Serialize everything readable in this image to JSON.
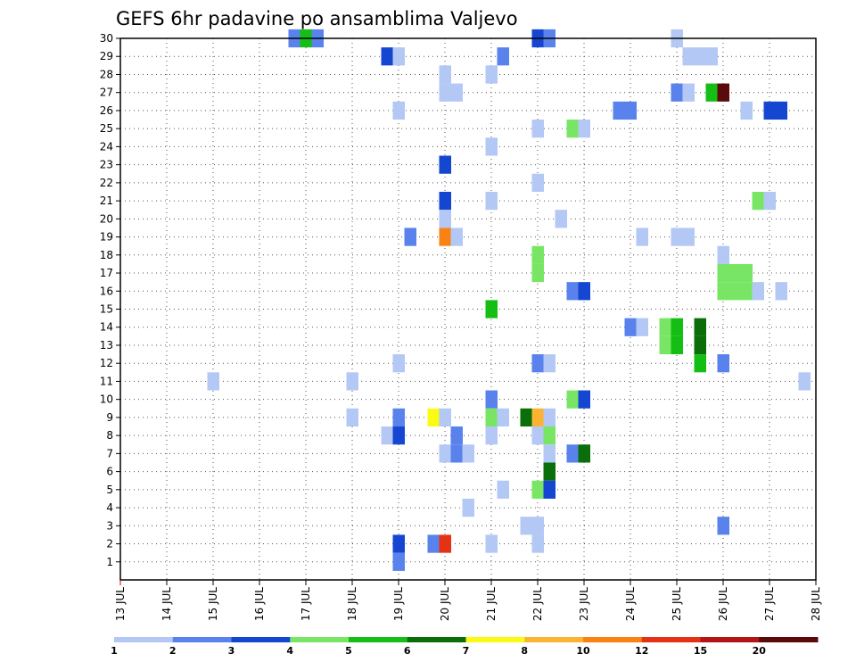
{
  "chart_data": {
    "type": "heatmap",
    "title": "GEFS 6hr padavine po ansamblima Valjevo",
    "x_tick_labels": [
      "13 JUL",
      "14 JUL",
      "15 JUL",
      "16 JUL",
      "17 JUL",
      "18 JUL",
      "19 JUL",
      "20 JUL",
      "21 JUL",
      "22 JUL",
      "23 JUL",
      "24 JUL",
      "25 JUL",
      "26 JUL",
      "27 JUL",
      "28 JUL"
    ],
    "x_range_days": [
      13,
      28
    ],
    "y_tick_labels": [
      "1",
      "2",
      "3",
      "4",
      "5",
      "6",
      "7",
      "8",
      "9",
      "10",
      "11",
      "12",
      "13",
      "14",
      "15",
      "16",
      "17",
      "18",
      "19",
      "20",
      "21",
      "22",
      "23",
      "24",
      "25",
      "26",
      "27",
      "28",
      "29",
      "30"
    ],
    "y_range": [
      0,
      30
    ],
    "grid": true,
    "legend": {
      "placement": "bottom",
      "labels": [
        "1",
        "2",
        "3",
        "4",
        "5",
        "6",
        "7",
        "8",
        "10",
        "12",
        "15",
        "20"
      ],
      "colors": [
        "#b4c8f5",
        "#5a82ec",
        "#1446d2",
        "#78e664",
        "#14be14",
        "#0a6e0a",
        "#fafa14",
        "#fab432",
        "#fa8214",
        "#e63214",
        "#b41414",
        "#5a0a0a"
      ]
    },
    "cells": [
      {
        "member": 30,
        "day": 16.75,
        "value": 2
      },
      {
        "member": 30,
        "day": 17.0,
        "value": 5
      },
      {
        "member": 30,
        "day": 17.25,
        "value": 2
      },
      {
        "member": 30,
        "day": 22.0,
        "value": 3
      },
      {
        "member": 30,
        "day": 22.25,
        "value": 2
      },
      {
        "member": 30,
        "day": 25.0,
        "value": 1
      },
      {
        "member": 29,
        "day": 18.75,
        "value": 3
      },
      {
        "member": 29,
        "day": 19.0,
        "value": 1
      },
      {
        "member": 29,
        "day": 21.25,
        "value": 2
      },
      {
        "member": 29,
        "day": 25.25,
        "value": 1
      },
      {
        "member": 29,
        "day": 25.5,
        "value": 1
      },
      {
        "member": 29,
        "day": 25.75,
        "value": 1
      },
      {
        "member": 28,
        "day": 20.0,
        "value": 1
      },
      {
        "member": 28,
        "day": 21.0,
        "value": 1
      },
      {
        "member": 27,
        "day": 20.0,
        "value": 1
      },
      {
        "member": 27,
        "day": 20.25,
        "value": 1
      },
      {
        "member": 27,
        "day": 25.0,
        "value": 2
      },
      {
        "member": 27,
        "day": 25.25,
        "value": 1
      },
      {
        "member": 27,
        "day": 25.75,
        "value": 5
      },
      {
        "member": 27,
        "day": 26.0,
        "value": 20
      },
      {
        "member": 26,
        "day": 19.0,
        "value": 1
      },
      {
        "member": 26,
        "day": 23.75,
        "value": 2
      },
      {
        "member": 26,
        "day": 24.0,
        "value": 2
      },
      {
        "member": 26,
        "day": 26.5,
        "value": 1
      },
      {
        "member": 26,
        "day": 27.0,
        "value": 3
      },
      {
        "member": 26,
        "day": 27.25,
        "value": 3
      },
      {
        "member": 25,
        "day": 22.0,
        "value": 1
      },
      {
        "member": 25,
        "day": 22.75,
        "value": 4
      },
      {
        "member": 25,
        "day": 23.0,
        "value": 1
      },
      {
        "member": 24,
        "day": 21.0,
        "value": 1
      },
      {
        "member": 23,
        "day": 20.0,
        "value": 3
      },
      {
        "member": 22,
        "day": 22.0,
        "value": 1
      },
      {
        "member": 21,
        "day": 20.0,
        "value": 3
      },
      {
        "member": 21,
        "day": 21.0,
        "value": 1
      },
      {
        "member": 21,
        "day": 26.75,
        "value": 4
      },
      {
        "member": 21,
        "day": 27.0,
        "value": 1
      },
      {
        "member": 20,
        "day": 20.0,
        "value": 1
      },
      {
        "member": 20,
        "day": 22.5,
        "value": 1
      },
      {
        "member": 19,
        "day": 19.25,
        "value": 2
      },
      {
        "member": 19,
        "day": 20.0,
        "value": 10
      },
      {
        "member": 19,
        "day": 20.25,
        "value": 1
      },
      {
        "member": 19,
        "day": 24.25,
        "value": 1
      },
      {
        "member": 19,
        "day": 25.0,
        "value": 1
      },
      {
        "member": 19,
        "day": 25.25,
        "value": 1
      },
      {
        "member": 18,
        "day": 22.0,
        "value": 4
      },
      {
        "member": 18,
        "day": 26.0,
        "value": 1
      },
      {
        "member": 17,
        "day": 22.0,
        "value": 4
      },
      {
        "member": 17,
        "day": 26.0,
        "value": 4
      },
      {
        "member": 17,
        "day": 26.25,
        "value": 4
      },
      {
        "member": 17,
        "day": 26.5,
        "value": 4
      },
      {
        "member": 16,
        "day": 22.75,
        "value": 2
      },
      {
        "member": 16,
        "day": 23.0,
        "value": 3
      },
      {
        "member": 16,
        "day": 26.0,
        "value": 4
      },
      {
        "member": 16,
        "day": 26.25,
        "value": 4
      },
      {
        "member": 16,
        "day": 26.5,
        "value": 4
      },
      {
        "member": 16,
        "day": 26.75,
        "value": 1
      },
      {
        "member": 16,
        "day": 27.25,
        "value": 1
      },
      {
        "member": 15,
        "day": 21.0,
        "value": 5
      },
      {
        "member": 14,
        "day": 24.0,
        "value": 2
      },
      {
        "member": 14,
        "day": 24.25,
        "value": 1
      },
      {
        "member": 14,
        "day": 24.75,
        "value": 4
      },
      {
        "member": 14,
        "day": 25.0,
        "value": 5
      },
      {
        "member": 14,
        "day": 25.5,
        "value": 6
      },
      {
        "member": 13,
        "day": 24.75,
        "value": 4
      },
      {
        "member": 13,
        "day": 25.0,
        "value": 5
      },
      {
        "member": 13,
        "day": 25.5,
        "value": 6
      },
      {
        "member": 12,
        "day": 19.0,
        "value": 1
      },
      {
        "member": 12,
        "day": 22.0,
        "value": 2
      },
      {
        "member": 12,
        "day": 22.25,
        "value": 1
      },
      {
        "member": 12,
        "day": 25.5,
        "value": 5
      },
      {
        "member": 12,
        "day": 26.0,
        "value": 2
      },
      {
        "member": 11,
        "day": 15.0,
        "value": 1
      },
      {
        "member": 11,
        "day": 18.0,
        "value": 1
      },
      {
        "member": 11,
        "day": 27.75,
        "value": 1
      },
      {
        "member": 10,
        "day": 21.0,
        "value": 2
      },
      {
        "member": 10,
        "day": 22.75,
        "value": 4
      },
      {
        "member": 10,
        "day": 23.0,
        "value": 3
      },
      {
        "member": 9,
        "day": 18.0,
        "value": 1
      },
      {
        "member": 9,
        "day": 19.0,
        "value": 2
      },
      {
        "member": 9,
        "day": 19.75,
        "value": 7
      },
      {
        "member": 9,
        "day": 20.0,
        "value": 1
      },
      {
        "member": 9,
        "day": 21.0,
        "value": 4
      },
      {
        "member": 9,
        "day": 21.25,
        "value": 1
      },
      {
        "member": 9,
        "day": 21.75,
        "value": 6
      },
      {
        "member": 9,
        "day": 22.0,
        "value": 8
      },
      {
        "member": 9,
        "day": 22.25,
        "value": 1
      },
      {
        "member": 8,
        "day": 18.75,
        "value": 1
      },
      {
        "member": 8,
        "day": 19.0,
        "value": 3
      },
      {
        "member": 8,
        "day": 20.25,
        "value": 2
      },
      {
        "member": 8,
        "day": 21.0,
        "value": 1
      },
      {
        "member": 8,
        "day": 22.0,
        "value": 1
      },
      {
        "member": 8,
        "day": 22.25,
        "value": 4
      },
      {
        "member": 7,
        "day": 20.0,
        "value": 1
      },
      {
        "member": 7,
        "day": 20.25,
        "value": 2
      },
      {
        "member": 7,
        "day": 20.5,
        "value": 1
      },
      {
        "member": 7,
        "day": 22.25,
        "value": 1
      },
      {
        "member": 7,
        "day": 22.75,
        "value": 2
      },
      {
        "member": 7,
        "day": 23.0,
        "value": 6
      },
      {
        "member": 6,
        "day": 22.25,
        "value": 6
      },
      {
        "member": 5,
        "day": 21.25,
        "value": 1
      },
      {
        "member": 5,
        "day": 22.0,
        "value": 4
      },
      {
        "member": 5,
        "day": 22.25,
        "value": 3
      },
      {
        "member": 4,
        "day": 20.5,
        "value": 1
      },
      {
        "member": 3,
        "day": 21.75,
        "value": 1
      },
      {
        "member": 3,
        "day": 22.0,
        "value": 1
      },
      {
        "member": 3,
        "day": 26.0,
        "value": 2
      },
      {
        "member": 2,
        "day": 19.0,
        "value": 3
      },
      {
        "member": 2,
        "day": 19.75,
        "value": 2
      },
      {
        "member": 2,
        "day": 20.0,
        "value": 12
      },
      {
        "member": 2,
        "day": 21.0,
        "value": 1
      },
      {
        "member": 2,
        "day": 22.0,
        "value": 1
      },
      {
        "member": 1,
        "day": 19.0,
        "value": 2
      }
    ]
  }
}
